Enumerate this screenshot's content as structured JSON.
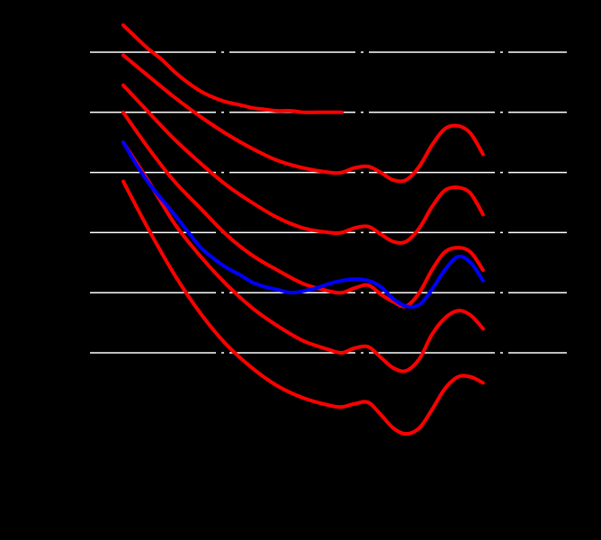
{
  "chart_data": {
    "type": "line",
    "title": "",
    "xlabel": "",
    "ylabel": "",
    "xscale": "log",
    "xlim": [
      20,
      16000
    ],
    "ylim": [
      -10,
      130
    ],
    "grid": "horizontal",
    "grid_y": [
      20,
      40,
      60,
      80,
      100,
      120
    ],
    "legend": "none",
    "colors": {
      "background": "#000000",
      "grid": "#ffffff",
      "contour": "#ff0000",
      "highlight": "#0000ff"
    },
    "series": [
      {
        "color": "#ff0000",
        "x": [
          20,
          25,
          31.5,
          40,
          50,
          63,
          80,
          100,
          125,
          160,
          200,
          250,
          315,
          400,
          500,
          630,
          800,
          1000
        ],
        "y": [
          129,
          125,
          121,
          117.5,
          113.5,
          110,
          107,
          105,
          103.5,
          102.5,
          101.5,
          101,
          100.5,
          100.5,
          100,
          100,
          100,
          100
        ]
      },
      {
        "color": "#ff0000",
        "x": [
          20,
          31.5,
          50,
          80,
          125,
          200,
          315,
          500,
          800,
          1000,
          1250,
          1600,
          2000,
          2500,
          3150,
          4000,
          5000,
          6300,
          8000,
          10000,
          12500
        ],
        "y": [
          119,
          112,
          105,
          98.5,
          93,
          88,
          84,
          81.5,
          80,
          80,
          81.5,
          82,
          80,
          77.5,
          77.5,
          82,
          89,
          94.5,
          95.5,
          93,
          86
        ]
      },
      {
        "color": "#ff0000",
        "x": [
          20,
          31.5,
          50,
          80,
          125,
          200,
          315,
          500,
          800,
          1000,
          1250,
          1600,
          2000,
          2500,
          3150,
          4000,
          5000,
          6300,
          8000,
          10000,
          12500
        ],
        "y": [
          109,
          100,
          91,
          83,
          76,
          70,
          65,
          61.5,
          60,
          60,
          61.5,
          62,
          59.5,
          57,
          57,
          61.5,
          68.5,
          74,
          75,
          73,
          66
        ]
      },
      {
        "color": "#ff0000",
        "x": [
          20,
          31.5,
          50,
          80,
          125,
          200,
          315,
          500,
          800,
          1000,
          1250,
          1600,
          2000,
          2500,
          3150,
          4000,
          5000,
          6300,
          8000,
          10000,
          12500
        ],
        "y": [
          100,
          88,
          77,
          68,
          59.5,
          52.5,
          47.5,
          43,
          40.5,
          40,
          41.5,
          42.5,
          39.5,
          37,
          35.5,
          40,
          47.5,
          53.5,
          55,
          53.5,
          47.5
        ]
      },
      {
        "color": "#ff0000",
        "x": [
          20,
          31.5,
          50,
          80,
          125,
          200,
          315,
          500,
          800,
          1000,
          1250,
          1600,
          2000,
          2500,
          3150,
          4000,
          5000,
          6300,
          8000,
          10000,
          12500
        ],
        "y": [
          90,
          77,
          63,
          52,
          43,
          35,
          29,
          24,
          21,
          20,
          21.5,
          22,
          18.5,
          15,
          14,
          18,
          26,
          31.5,
          34,
          32.5,
          28
        ]
      },
      {
        "color": "#ff0000",
        "x": [
          20,
          31.5,
          50,
          80,
          125,
          200,
          315,
          500,
          800,
          1000,
          1250,
          1600,
          2000,
          2500,
          3150,
          4000,
          5000,
          6300,
          8000,
          10000,
          12500
        ],
        "y": [
          77,
          61,
          46,
          33,
          23,
          15,
          9,
          5,
          2.5,
          2,
          3,
          3.5,
          -0.5,
          -5,
          -7,
          -5,
          1,
          8,
          12,
          12,
          10
        ]
      },
      {
        "color": "#0000ff",
        "x": [
          20,
          25,
          31.5,
          40,
          50,
          63,
          80,
          100,
          125,
          160,
          200,
          250,
          315,
          400,
          500,
          630,
          800,
          1000,
          1250,
          1600,
          2000,
          2500,
          3150,
          4000,
          5000,
          6300,
          8000,
          10000,
          12500
        ],
        "y": [
          90,
          83,
          76.5,
          71,
          66,
          60.5,
          55,
          51.5,
          48.5,
          46,
          43.5,
          42,
          41,
          40,
          40.5,
          41.5,
          43,
          44,
          44.5,
          44,
          42,
          38,
          35.5,
          36,
          41,
          47.5,
          52,
          50,
          44
        ]
      }
    ]
  }
}
